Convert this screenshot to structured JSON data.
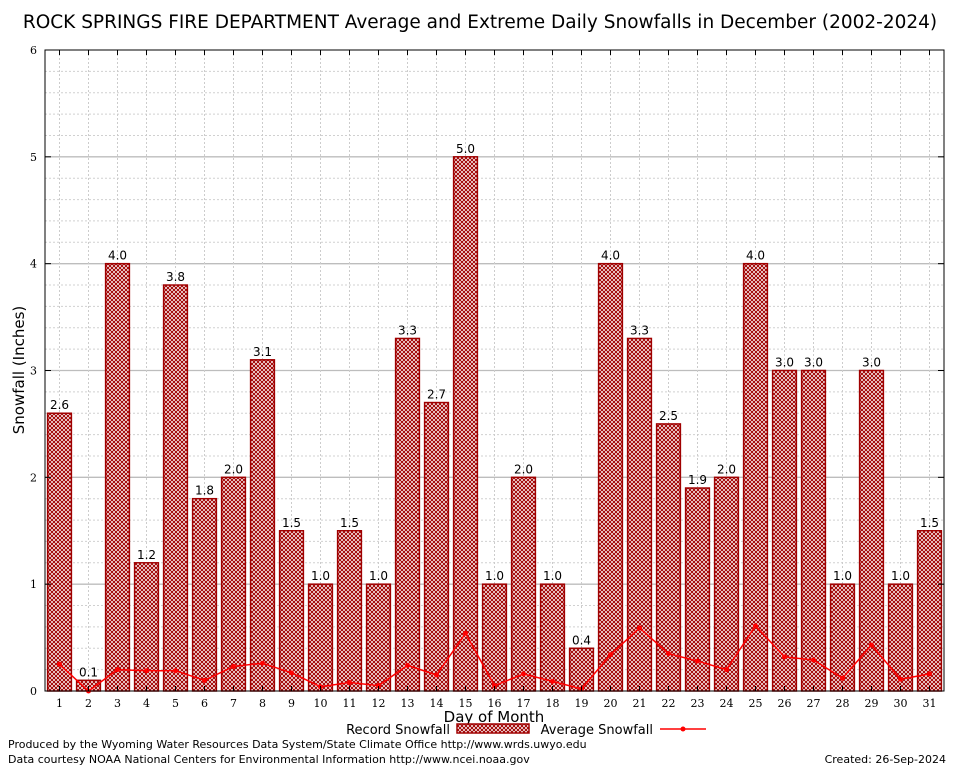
{
  "chart_data": {
    "type": "bar",
    "title": "ROCK SPRINGS FIRE DEPARTMENT Average and Extreme Daily Snowfalls in December (2002-2024)",
    "xlabel": "Day of Month",
    "ylabel": "Snowfall (Inches)",
    "ylim": [
      0,
      6
    ],
    "yticks": [
      "0",
      "1",
      "2",
      "3",
      "4",
      "5",
      "6"
    ],
    "grid": true,
    "legend_position": "bottom-center",
    "categories": [
      "1",
      "2",
      "3",
      "4",
      "5",
      "6",
      "7",
      "8",
      "9",
      "10",
      "11",
      "12",
      "13",
      "14",
      "15",
      "16",
      "17",
      "18",
      "19",
      "20",
      "21",
      "22",
      "23",
      "24",
      "25",
      "26",
      "27",
      "28",
      "29",
      "30",
      "31"
    ],
    "series": [
      {
        "name": "Record Snowfall",
        "type": "bar",
        "color": "#a00000",
        "values": [
          2.6,
          0.1,
          4.0,
          1.2,
          3.8,
          1.8,
          2.0,
          3.1,
          1.5,
          1.0,
          1.5,
          1.0,
          3.3,
          2.7,
          5.0,
          1.0,
          2.0,
          1.0,
          0.4,
          4.0,
          3.3,
          2.5,
          1.9,
          2.0,
          4.0,
          3.0,
          3.0,
          1.0,
          3.0,
          1.0,
          1.5
        ],
        "labels": [
          "2.6",
          "0.1",
          "4.0",
          "1.2",
          "3.8",
          "1.8",
          "2.0",
          "3.1",
          "1.5",
          "1.0",
          "1.5",
          "1.0",
          "3.3",
          "2.7",
          "5.0",
          "1.0",
          "2.0",
          "1.0",
          "0.4",
          "4.0",
          "3.3",
          "2.5",
          "1.9",
          "2.0",
          "4.0",
          "3.0",
          "3.0",
          "1.0",
          "3.0",
          "1.0",
          "1.5"
        ]
      },
      {
        "name": "Average Snowfall",
        "type": "line",
        "color": "#ff0000",
        "values": [
          0.25,
          0.0,
          0.2,
          0.19,
          0.19,
          0.1,
          0.23,
          0.26,
          0.17,
          0.04,
          0.08,
          0.05,
          0.24,
          0.15,
          0.54,
          0.05,
          0.16,
          0.09,
          0.02,
          0.34,
          0.59,
          0.35,
          0.28,
          0.2,
          0.61,
          0.32,
          0.29,
          0.12,
          0.43,
          0.11,
          0.16
        ]
      }
    ]
  },
  "footer": {
    "produced_by": "Produced by the Wyoming Water Resources Data System/State Climate Office http://www.wrds.uwyo.edu",
    "courtesy": "Data courtesy NOAA National Centers for Environmental Information http://www.ncei.noaa.gov",
    "created": "Created:  26-Sep-2024"
  }
}
